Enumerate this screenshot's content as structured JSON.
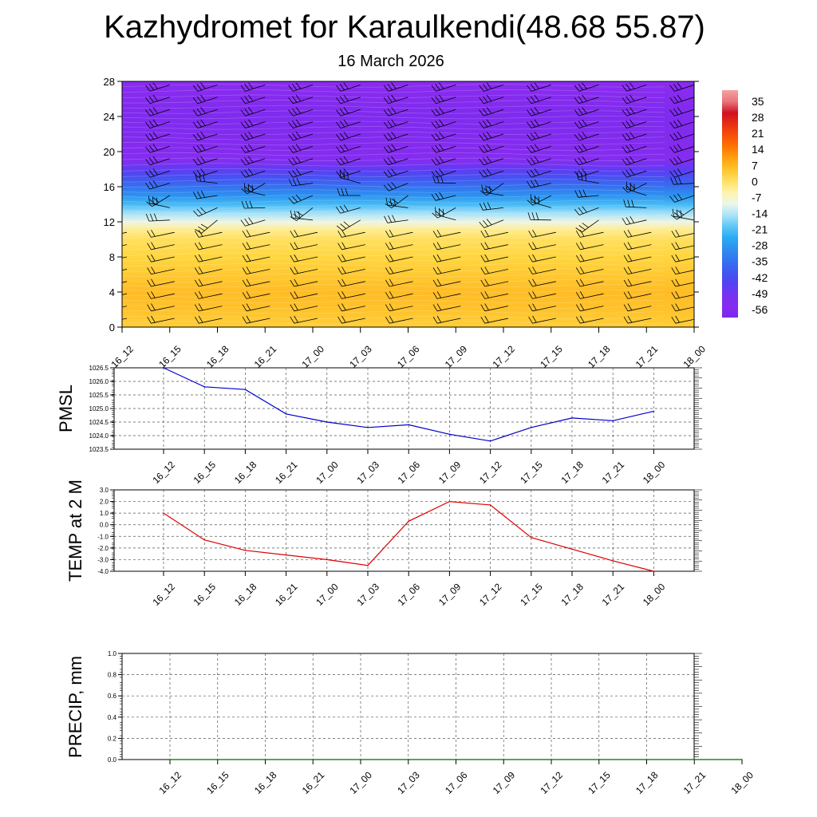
{
  "header": {
    "title": "Kazhydromet for Karaulkendi(48.68 55.87)",
    "subtitle": "16 March 2026"
  },
  "chart_data": [
    {
      "type": "heatmap",
      "title": "Kazhydromet for Karaulkendi(48.68 55.87)",
      "subtitle": "16 March 2026",
      "x_ticks": [
        "16_12",
        "16_15",
        "16_18",
        "16_21",
        "17_00",
        "17_03",
        "17_06",
        "17_09",
        "17_12",
        "17_15",
        "17_18",
        "17_21",
        "18_00"
      ],
      "y_ticks": [
        0,
        4,
        8,
        12,
        16,
        20,
        24,
        28
      ],
      "ylim": [
        0,
        28
      ],
      "colorbar_labels": [
        "35",
        "28",
        "21",
        "14",
        "7",
        "0",
        "-7",
        "-14",
        "-21",
        "-28",
        "-35",
        "-42",
        "-49",
        "-56"
      ],
      "temperature_profile": {
        "heights": [
          0,
          2,
          4,
          6,
          8,
          10,
          11,
          12,
          13,
          14,
          15,
          16,
          17,
          18,
          19,
          20,
          22,
          24,
          26,
          28
        ],
        "values": [
          1,
          3,
          4,
          2,
          0,
          -2,
          -5,
          -12,
          -18,
          -25,
          -32,
          -38,
          -44,
          -50,
          -55,
          -58,
          -60,
          -61,
          -58,
          -56
        ]
      },
      "wind_barbs": "present"
    },
    {
      "type": "line",
      "ylabel": "PMSL",
      "categories": [
        "16_12",
        "16_15",
        "16_18",
        "16_21",
        "17_00",
        "17_03",
        "17_06",
        "17_09",
        "17_12",
        "17_15",
        "17_18",
        "17_21",
        "18_00"
      ],
      "y_ticks": [
        "1023.5",
        "1024.0",
        "1024.5",
        "1025.0",
        "1025.5",
        "1026.0",
        "1026.5"
      ],
      "ylim": [
        1023.5,
        1026.5
      ],
      "color": "#0000cc",
      "values": [
        1026.5,
        1025.8,
        1025.7,
        1024.8,
        1024.5,
        1024.3,
        1024.4,
        1024.05,
        1023.8,
        1024.3,
        1024.65,
        1024.55,
        1024.9
      ]
    },
    {
      "type": "line",
      "ylabel": "TEMP at 2 M",
      "categories": [
        "16_12",
        "16_15",
        "16_18",
        "16_21",
        "17_00",
        "17_03",
        "17_06",
        "17_09",
        "17_12",
        "17_15",
        "17_18",
        "17_21",
        "18_00"
      ],
      "y_ticks": [
        "-4.0",
        "-3.0",
        "-2.0",
        "-1.0",
        "0.0",
        "1.0",
        "2.0",
        "3.0"
      ],
      "ylim": [
        -4,
        3
      ],
      "color": "#dd0000",
      "values": [
        1.0,
        -1.3,
        -2.2,
        -2.6,
        -3.0,
        -3.5,
        0.3,
        2.0,
        1.7,
        -1.1,
        -2.1,
        -3.1,
        -4.0
      ]
    },
    {
      "type": "line",
      "ylabel": "PRECIP, mm",
      "categories": [
        "16_12",
        "16_15",
        "16_18",
        "16_21",
        "17_00",
        "17_03",
        "17_06",
        "17_09",
        "17_12",
        "17_15",
        "17_18",
        "17_21",
        "18_00"
      ],
      "y_ticks": [
        "0.0",
        "0.2",
        "0.4",
        "0.6",
        "0.8",
        "1.0"
      ],
      "ylim": [
        0,
        1
      ],
      "color": "#006600",
      "values": [
        0,
        0,
        0,
        0,
        0,
        0,
        0,
        0,
        0,
        0,
        0,
        0,
        0
      ]
    }
  ]
}
